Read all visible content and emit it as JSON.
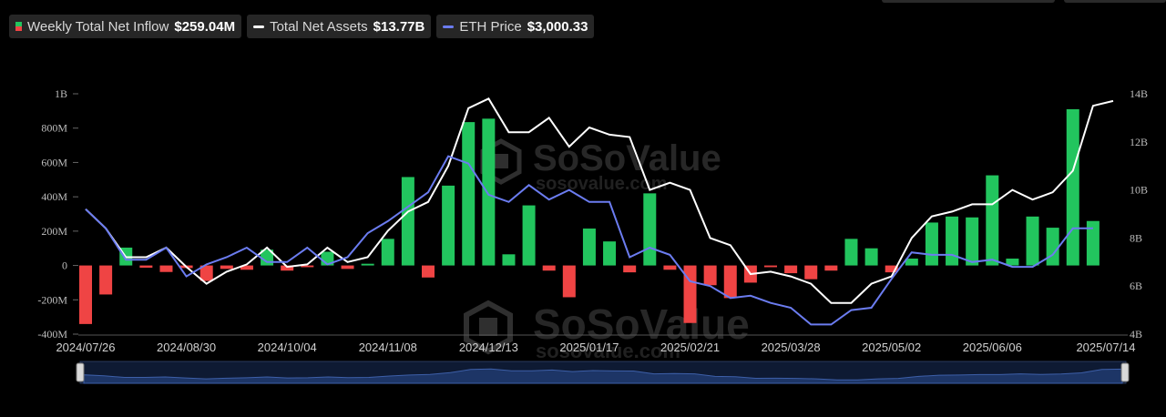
{
  "legend": [
    {
      "label": "Weekly Total Net Inflow",
      "value": "$259.04M",
      "swatch": "bar"
    },
    {
      "label": "Total Net Assets",
      "value": "$13.77B",
      "swatch": "line",
      "color": "#ffffff"
    },
    {
      "label": "ETH Price",
      "value": "$3,000.33",
      "swatch": "line",
      "color": "#6b7cf0"
    }
  ],
  "watermark": {
    "brand": "SoSoValue",
    "url": "sosovalue.com"
  },
  "chart_data": {
    "type": "bar",
    "x_tick_labels": [
      "2024/07/26",
      "2024/08/30",
      "2024/10/04",
      "2024/11/08",
      "2024/12/13",
      "2025/01/17",
      "2025/02/21",
      "2025/03/28",
      "2025/05/02",
      "2025/06/06",
      "2025/07/14"
    ],
    "y_left_ticks": [
      "1B",
      "800M",
      "600M",
      "400M",
      "200M",
      "0",
      "-200M",
      "-400M"
    ],
    "y_left_range": [
      -400,
      1000
    ],
    "y_right_ticks": [
      "14B",
      "12B",
      "10B",
      "8B",
      "6B",
      "4B"
    ],
    "y_right_range": [
      4,
      14
    ],
    "colors": {
      "positive": "#22c55e",
      "negative": "#ef4444",
      "assets": "#ffffff",
      "price": "#6b7cf0"
    },
    "weeks": [
      "2024/07/26",
      "2024/08/02",
      "2024/08/09",
      "2024/08/16",
      "2024/08/23",
      "2024/08/30",
      "2024/09/06",
      "2024/09/13",
      "2024/09/20",
      "2024/09/27",
      "2024/10/04",
      "2024/10/11",
      "2024/10/18",
      "2024/10/25",
      "2024/11/01",
      "2024/11/08",
      "2024/11/15",
      "2024/11/22",
      "2024/11/29",
      "2024/12/06",
      "2024/12/13",
      "2024/12/20",
      "2024/12/27",
      "2025/01/03",
      "2025/01/10",
      "2025/01/17",
      "2025/01/24",
      "2025/01/31",
      "2025/02/07",
      "2025/02/14",
      "2025/02/21",
      "2025/02/28",
      "2025/03/07",
      "2025/03/14",
      "2025/03/21",
      "2025/03/28",
      "2025/04/04",
      "2025/04/11",
      "2025/04/18",
      "2025/04/25",
      "2025/05/02",
      "2025/05/09",
      "2025/05/16",
      "2025/05/23",
      "2025/05/30",
      "2025/06/06",
      "2025/06/13",
      "2025/06/20",
      "2025/06/27",
      "2025/07/03",
      "2025/07/11",
      "2025/07/14"
    ],
    "series": [
      {
        "name": "Weekly Total Net Inflow",
        "unit": "M",
        "values": [
          -341,
          -169,
          104,
          -13,
          -38,
          -15,
          -90,
          -20,
          -25,
          92,
          -30,
          -10,
          80,
          -20,
          10,
          155,
          515,
          -70,
          465,
          835,
          855,
          65,
          350,
          -30,
          -185,
          215,
          140,
          -40,
          420,
          -25,
          -335,
          -115,
          -190,
          -100,
          -10,
          -45,
          -80,
          -30,
          155,
          100,
          -40,
          40,
          250,
          285,
          280,
          525,
          40,
          285,
          220,
          910,
          259
        ],
        "x_index": [
          0,
          1,
          2,
          3,
          4,
          5,
          6,
          7,
          8,
          9,
          10,
          11,
          12,
          13,
          14,
          15,
          16,
          17,
          18,
          19,
          20,
          21,
          22,
          23,
          24,
          25,
          26,
          27,
          28,
          29,
          30,
          31,
          32,
          33,
          34,
          35,
          36,
          37,
          38,
          39,
          40,
          41,
          42,
          43,
          44,
          45,
          46,
          47,
          48,
          49,
          50
        ]
      },
      {
        "name": "Total Net Assets",
        "unit": "B",
        "values": [
          9.2,
          8.4,
          7.2,
          7.2,
          7.6,
          6.8,
          6.1,
          6.6,
          6.9,
          7.6,
          6.8,
          6.9,
          7.6,
          7.0,
          7.2,
          8.3,
          9.1,
          9.5,
          11.0,
          13.4,
          13.8,
          12.4,
          12.4,
          13.0,
          11.8,
          12.6,
          12.3,
          12.2,
          10.0,
          10.3,
          10.0,
          8.0,
          7.7,
          6.5,
          6.6,
          6.4,
          6.1,
          5.3,
          5.3,
          6.1,
          6.4,
          8.0,
          8.9,
          9.1,
          9.4,
          9.4,
          10.0,
          9.6,
          9.9,
          10.8,
          13.5,
          13.7
        ]
      },
      {
        "name": "ETH Price",
        "unit": "B-scale",
        "values": [
          9.2,
          8.4,
          7.1,
          7.1,
          7.6,
          6.4,
          6.9,
          7.2,
          7.6,
          7.0,
          7.0,
          7.6,
          6.9,
          7.2,
          8.2,
          8.7,
          9.3,
          9.9,
          11.4,
          11.1,
          9.8,
          9.5,
          10.2,
          9.6,
          10.0,
          9.5,
          9.5,
          7.2,
          7.6,
          7.3,
          6.2,
          6.0,
          5.5,
          5.6,
          5.3,
          5.1,
          4.4,
          4.4,
          5.0,
          5.1,
          6.3,
          7.4,
          7.3,
          7.3,
          7.0,
          7.1,
          6.8,
          6.8,
          7.3,
          8.4,
          8.4
        ]
      }
    ]
  }
}
